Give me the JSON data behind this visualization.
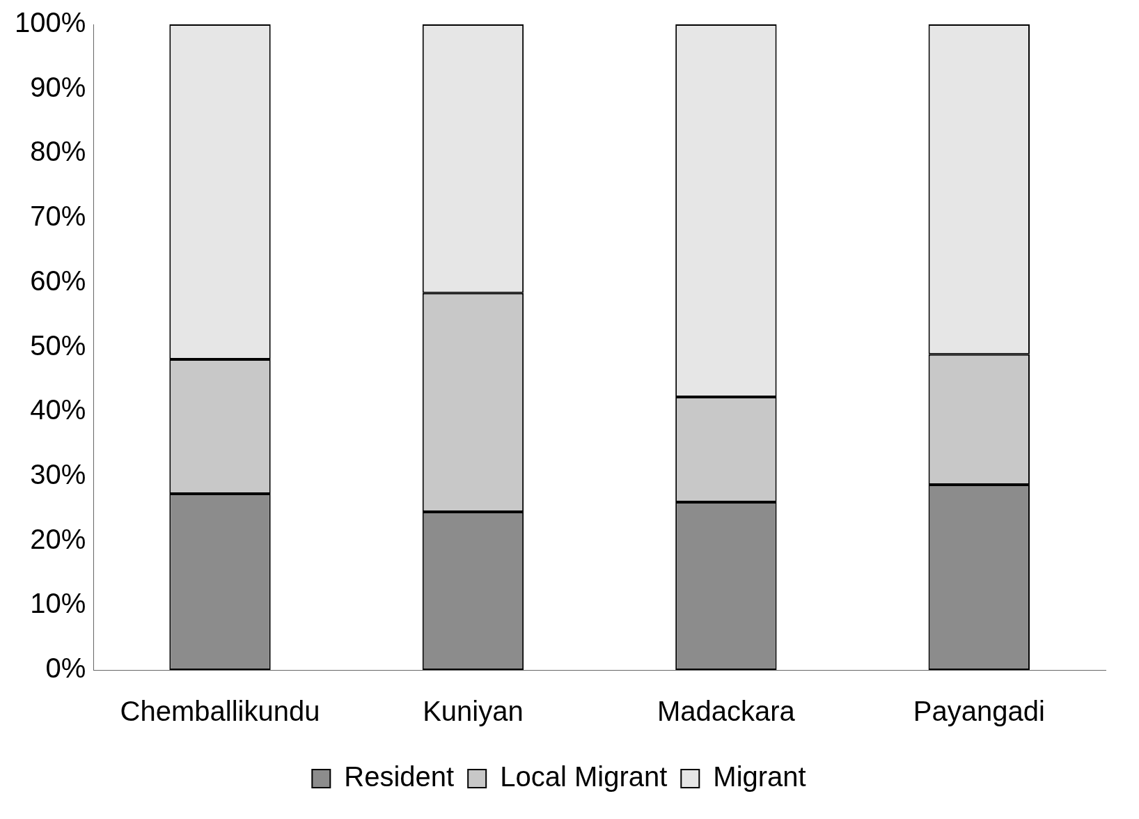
{
  "chart_data": {
    "type": "bar",
    "stacked": true,
    "categories": [
      "Chemballikundu",
      "Kuniyan",
      "Madackara",
      "Payangadi"
    ],
    "series": [
      {
        "name": "Resident",
        "color": "#8c8c8c",
        "values": [
          27.3,
          24.5,
          26.0,
          28.7
        ]
      },
      {
        "name": "Local Migrant",
        "color": "#c8c8c8",
        "values": [
          20.8,
          33.9,
          16.3,
          20.2
        ]
      },
      {
        "name": "Migrant",
        "color": "#e6e6e6",
        "values": [
          51.9,
          41.6,
          57.7,
          51.1
        ]
      }
    ],
    "ylim": [
      0,
      100
    ],
    "yticks": [
      {
        "value": 0,
        "label": "0%"
      },
      {
        "value": 10,
        "label": "10%"
      },
      {
        "value": 20,
        "label": "20%"
      },
      {
        "value": 30,
        "label": "30%"
      },
      {
        "value": 40,
        "label": "40%"
      },
      {
        "value": 50,
        "label": "50%"
      },
      {
        "value": 60,
        "label": "60%"
      },
      {
        "value": 70,
        "label": "70%"
      },
      {
        "value": 80,
        "label": "80%"
      },
      {
        "value": 90,
        "label": "90%"
      },
      {
        "value": 100,
        "label": "100%"
      }
    ],
    "grid": false,
    "legend": "bottom"
  }
}
